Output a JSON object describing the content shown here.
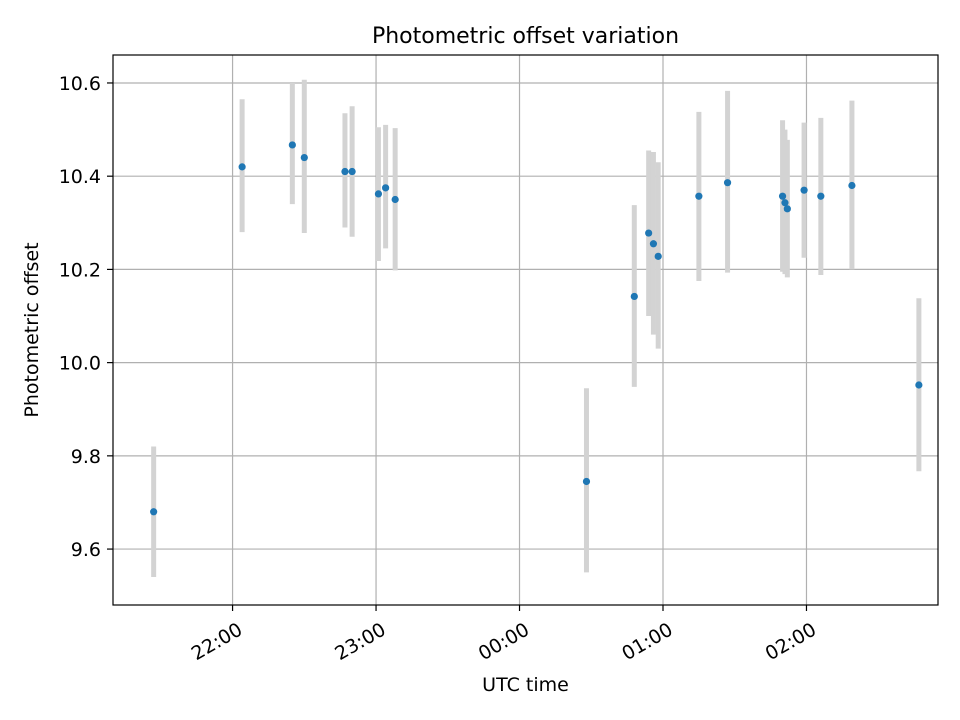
{
  "chart_data": {
    "type": "scatter",
    "title": "Photometric offset variation",
    "xlabel": "UTC time",
    "ylabel": "Photometric offset",
    "x_is_time": true,
    "xlim": [
      "21:10",
      "02:55"
    ],
    "ylim": [
      9.48,
      10.66
    ],
    "x_ticks": [
      "22:00",
      "23:00",
      "00:00",
      "01:00",
      "02:00"
    ],
    "y_ticks": [
      9.6,
      9.8,
      10.0,
      10.2,
      10.4,
      10.6
    ],
    "grid": true,
    "colors": {
      "point": "#1f77b4",
      "errorbar": "#d3d3d3",
      "grid": "#b0b0b0"
    },
    "series": [
      {
        "points": [
          {
            "x": "21:27",
            "y": 9.68,
            "err_low": 9.54,
            "err_high": 9.82
          },
          {
            "x": "22:04",
            "y": 10.42,
            "err_low": 10.28,
            "err_high": 10.565
          },
          {
            "x": "22:25",
            "y": 10.467,
            "err_low": 10.34,
            "err_high": 10.6
          },
          {
            "x": "22:30",
            "y": 10.44,
            "err_low": 10.278,
            "err_high": 10.607
          },
          {
            "x": "22:47",
            "y": 10.41,
            "err_low": 10.29,
            "err_high": 10.535
          },
          {
            "x": "22:50",
            "y": 10.41,
            "err_low": 10.27,
            "err_high": 10.55
          },
          {
            "x": "23:01",
            "y": 10.362,
            "err_low": 10.218,
            "err_high": 10.505
          },
          {
            "x": "23:04",
            "y": 10.375,
            "err_low": 10.245,
            "err_high": 10.51
          },
          {
            "x": "23:08",
            "y": 10.35,
            "err_low": 10.198,
            "err_high": 10.503
          },
          {
            "x": "00:28",
            "y": 9.745,
            "err_low": 9.55,
            "err_high": 9.945
          },
          {
            "x": "00:48",
            "y": 10.142,
            "err_low": 9.948,
            "err_high": 10.338
          },
          {
            "x": "00:54",
            "y": 10.278,
            "err_low": 10.1,
            "err_high": 10.455
          },
          {
            "x": "00:56",
            "y": 10.255,
            "err_low": 10.06,
            "err_high": 10.452
          },
          {
            "x": "00:58",
            "y": 10.228,
            "err_low": 10.03,
            "err_high": 10.43
          },
          {
            "x": "01:15",
            "y": 10.357,
            "err_low": 10.175,
            "err_high": 10.538
          },
          {
            "x": "01:27",
            "y": 10.386,
            "err_low": 10.193,
            "err_high": 10.583
          },
          {
            "x": "01:50",
            "y": 10.357,
            "err_low": 10.195,
            "err_high": 10.52
          },
          {
            "x": "01:51",
            "y": 10.343,
            "err_low": 10.19,
            "err_high": 10.5
          },
          {
            "x": "01:52",
            "y": 10.33,
            "err_low": 10.183,
            "err_high": 10.478
          },
          {
            "x": "01:59",
            "y": 10.37,
            "err_low": 10.225,
            "err_high": 10.515
          },
          {
            "x": "02:06",
            "y": 10.357,
            "err_low": 10.188,
            "err_high": 10.525
          },
          {
            "x": "02:19",
            "y": 10.38,
            "err_low": 10.2,
            "err_high": 10.562
          },
          {
            "x": "02:47",
            "y": 9.952,
            "err_low": 9.767,
            "err_high": 10.138
          }
        ]
      }
    ]
  }
}
